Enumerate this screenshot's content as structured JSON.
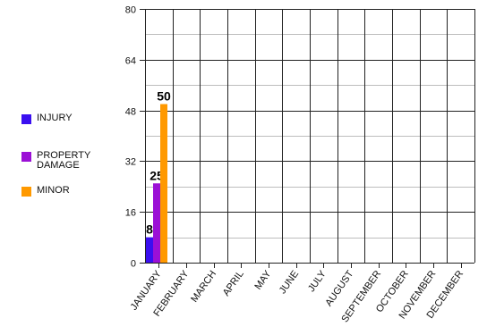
{
  "chart_data": {
    "type": "bar",
    "categories": [
      "JANUARY",
      "FEBRUARY",
      "MARCH",
      "APRIL",
      "MAY",
      "JUNE",
      "JULY",
      "AUGUST",
      "SEPTEMBER",
      "OCTOBER",
      "NOVEMBER",
      "DECEMBER"
    ],
    "series": [
      {
        "name": "INJURY",
        "color": "#3a0ff0",
        "values": [
          8,
          null,
          null,
          null,
          null,
          null,
          null,
          null,
          null,
          null,
          null,
          null
        ]
      },
      {
        "name": "PROPERTY DAMAGE",
        "color": "#9b10d6",
        "values": [
          25,
          null,
          null,
          null,
          null,
          null,
          null,
          null,
          null,
          null,
          null,
          null
        ]
      },
      {
        "name": "MINOR",
        "color": "#ff9900",
        "values": [
          50,
          null,
          null,
          null,
          null,
          null,
          null,
          null,
          null,
          null,
          null,
          null
        ]
      }
    ],
    "ylim": [
      0,
      80
    ],
    "yticks": [
      0,
      16,
      32,
      48,
      64,
      80
    ],
    "grid": true,
    "legend_position": "left",
    "data_labels": true
  }
}
